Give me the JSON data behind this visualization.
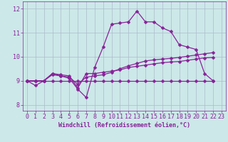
{
  "xlabel": "Windchill (Refroidissement éolien,°C)",
  "background_color": "#cce8e8",
  "grid_color": "#aabbcc",
  "line_color": "#882299",
  "xlim": [
    -0.5,
    23.5
  ],
  "ylim": [
    7.75,
    12.3
  ],
  "yticks": [
    8,
    9,
    10,
    11,
    12
  ],
  "xticks": [
    0,
    1,
    2,
    3,
    4,
    5,
    6,
    7,
    8,
    9,
    10,
    11,
    12,
    13,
    14,
    15,
    16,
    17,
    18,
    19,
    20,
    21,
    22,
    23
  ],
  "series1_y": [
    9.0,
    8.8,
    9.0,
    9.3,
    9.2,
    9.1,
    8.65,
    8.3,
    9.55,
    10.4,
    11.35,
    11.4,
    11.45,
    11.9,
    11.45,
    11.45,
    11.2,
    11.05,
    10.5,
    10.4,
    10.3,
    9.3,
    9.0
  ],
  "series1_x": [
    0,
    1,
    2,
    3,
    4,
    5,
    6,
    7,
    8,
    9,
    10,
    11,
    12,
    13,
    14,
    15,
    16,
    17,
    18,
    19,
    20,
    21,
    22
  ],
  "series2_y": [
    9.0,
    9.0,
    9.0,
    9.3,
    9.25,
    9.2,
    8.7,
    9.3,
    9.3,
    9.35,
    9.4,
    9.45,
    9.55,
    9.6,
    9.65,
    9.7,
    9.75,
    9.78,
    9.8,
    9.85,
    9.9,
    9.95,
    9.97
  ],
  "series2_x": [
    0,
    1,
    2,
    3,
    4,
    5,
    6,
    7,
    8,
    9,
    10,
    11,
    12,
    13,
    14,
    15,
    16,
    17,
    18,
    19,
    20,
    21,
    22
  ],
  "series3_y": [
    9.0,
    9.0,
    9.0,
    9.25,
    9.2,
    9.15,
    8.85,
    9.15,
    9.2,
    9.25,
    9.35,
    9.5,
    9.62,
    9.72,
    9.82,
    9.87,
    9.9,
    9.93,
    9.97,
    10.02,
    10.07,
    10.12,
    10.17
  ],
  "series3_x": [
    0,
    1,
    2,
    3,
    4,
    5,
    6,
    7,
    8,
    9,
    10,
    11,
    12,
    13,
    14,
    15,
    16,
    17,
    18,
    19,
    20,
    21,
    22
  ],
  "series4_y": [
    9.0,
    9.0,
    9.0,
    9.0,
    9.0,
    9.0,
    9.0,
    9.0,
    9.0,
    9.0,
    9.0,
    9.0,
    9.0,
    9.0,
    9.0,
    9.0,
    9.0,
    9.0,
    9.0,
    9.0,
    9.0,
    9.0,
    9.0
  ],
  "series4_x": [
    0,
    1,
    2,
    3,
    4,
    5,
    6,
    7,
    8,
    9,
    10,
    11,
    12,
    13,
    14,
    15,
    16,
    17,
    18,
    19,
    20,
    21,
    22
  ],
  "font_size_label": 6,
  "font_size_tick": 6,
  "marker": "D",
  "marker_size": 2.5
}
